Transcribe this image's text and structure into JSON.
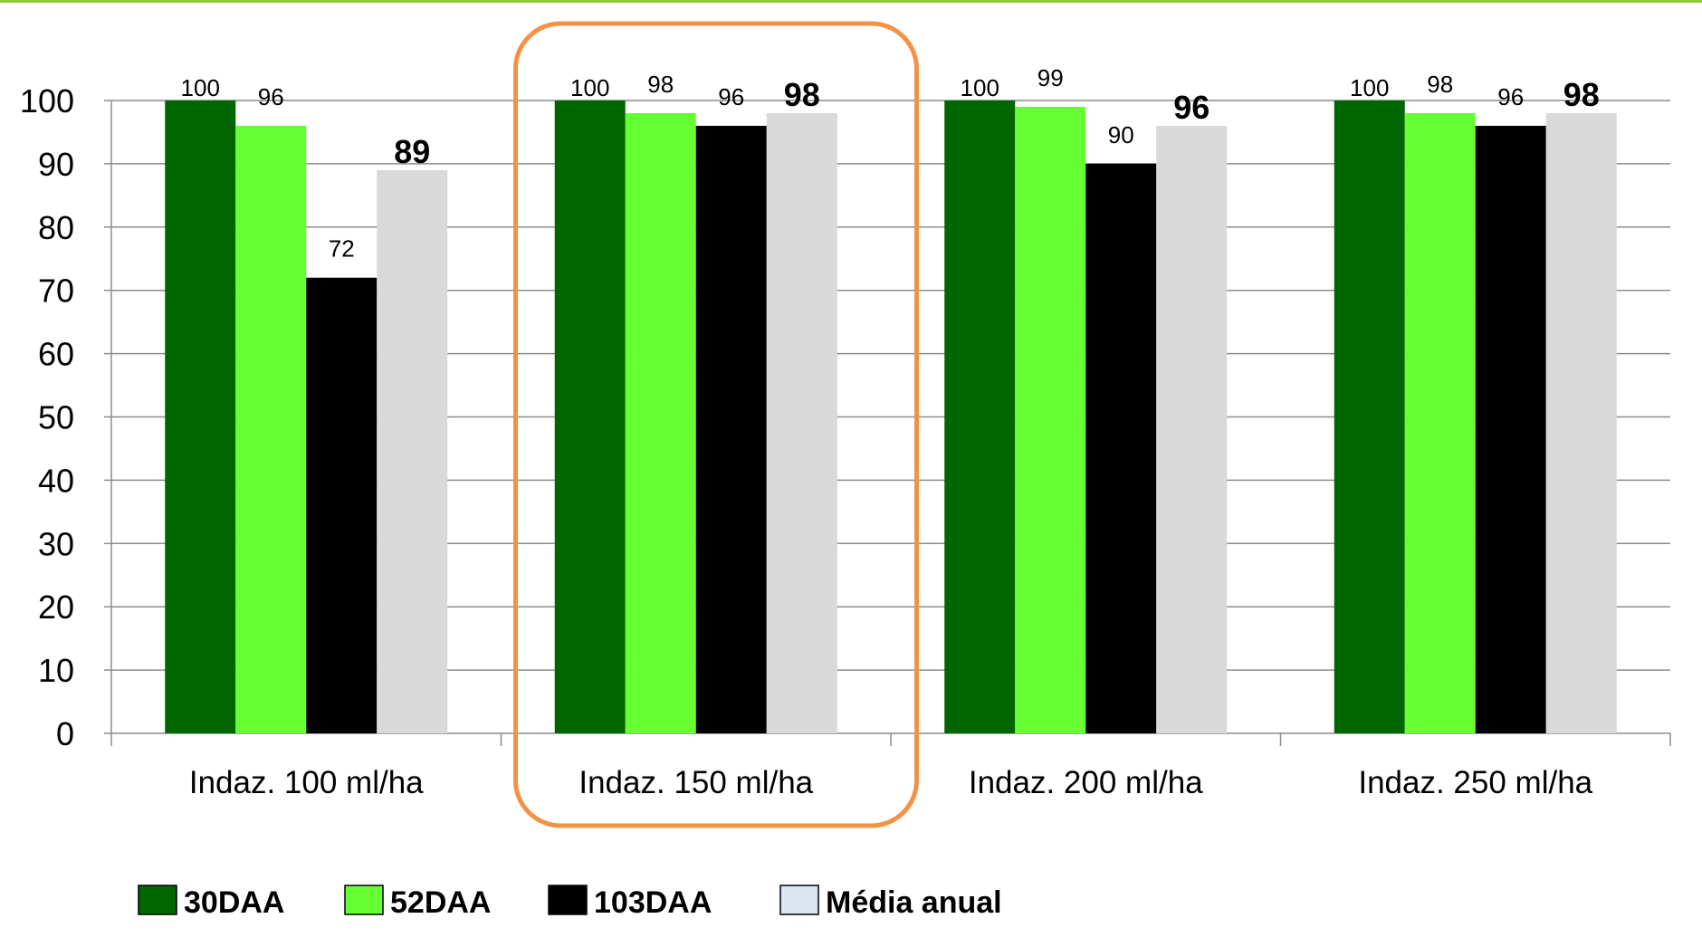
{
  "chart_data": {
    "type": "bar",
    "categories": [
      "Indaz. 100 ml/ha",
      "Indaz. 150 ml/ha",
      "Indaz. 200 ml/ha",
      "Indaz. 250 ml/ha"
    ],
    "series": [
      {
        "name": "30DAA",
        "values": [
          100,
          100,
          100,
          100
        ],
        "color": "#006600"
      },
      {
        "name": "52DAA",
        "values": [
          96,
          98,
          99,
          98
        ],
        "color": "#66ff33"
      },
      {
        "name": "103DAA",
        "values": [
          72,
          96,
          90,
          96
        ],
        "color": "#000000"
      },
      {
        "name": "Média anual",
        "values": [
          89,
          98,
          96,
          98
        ],
        "color": "#d9d9d9"
      }
    ],
    "data_labels": [
      [
        "100",
        "96",
        "72",
        "89"
      ],
      [
        "100",
        "98",
        "96",
        "98"
      ],
      [
        "100",
        "99",
        "90",
        "96"
      ],
      [
        "100",
        "98",
        "96",
        "98"
      ]
    ],
    "yticks": [
      "0",
      "10",
      "20",
      "30",
      "40",
      "50",
      "60",
      "70",
      "80",
      "90",
      "100"
    ],
    "ylim": [
      0,
      100
    ],
    "grid": true,
    "legend_position": "bottom",
    "highlighted_category": "Indaz. 150 ml/ha",
    "highlight_color": "#f39244",
    "top_rule_color": "#8dc63f",
    "legend_swatch_media_color": "#dce6f2"
  }
}
